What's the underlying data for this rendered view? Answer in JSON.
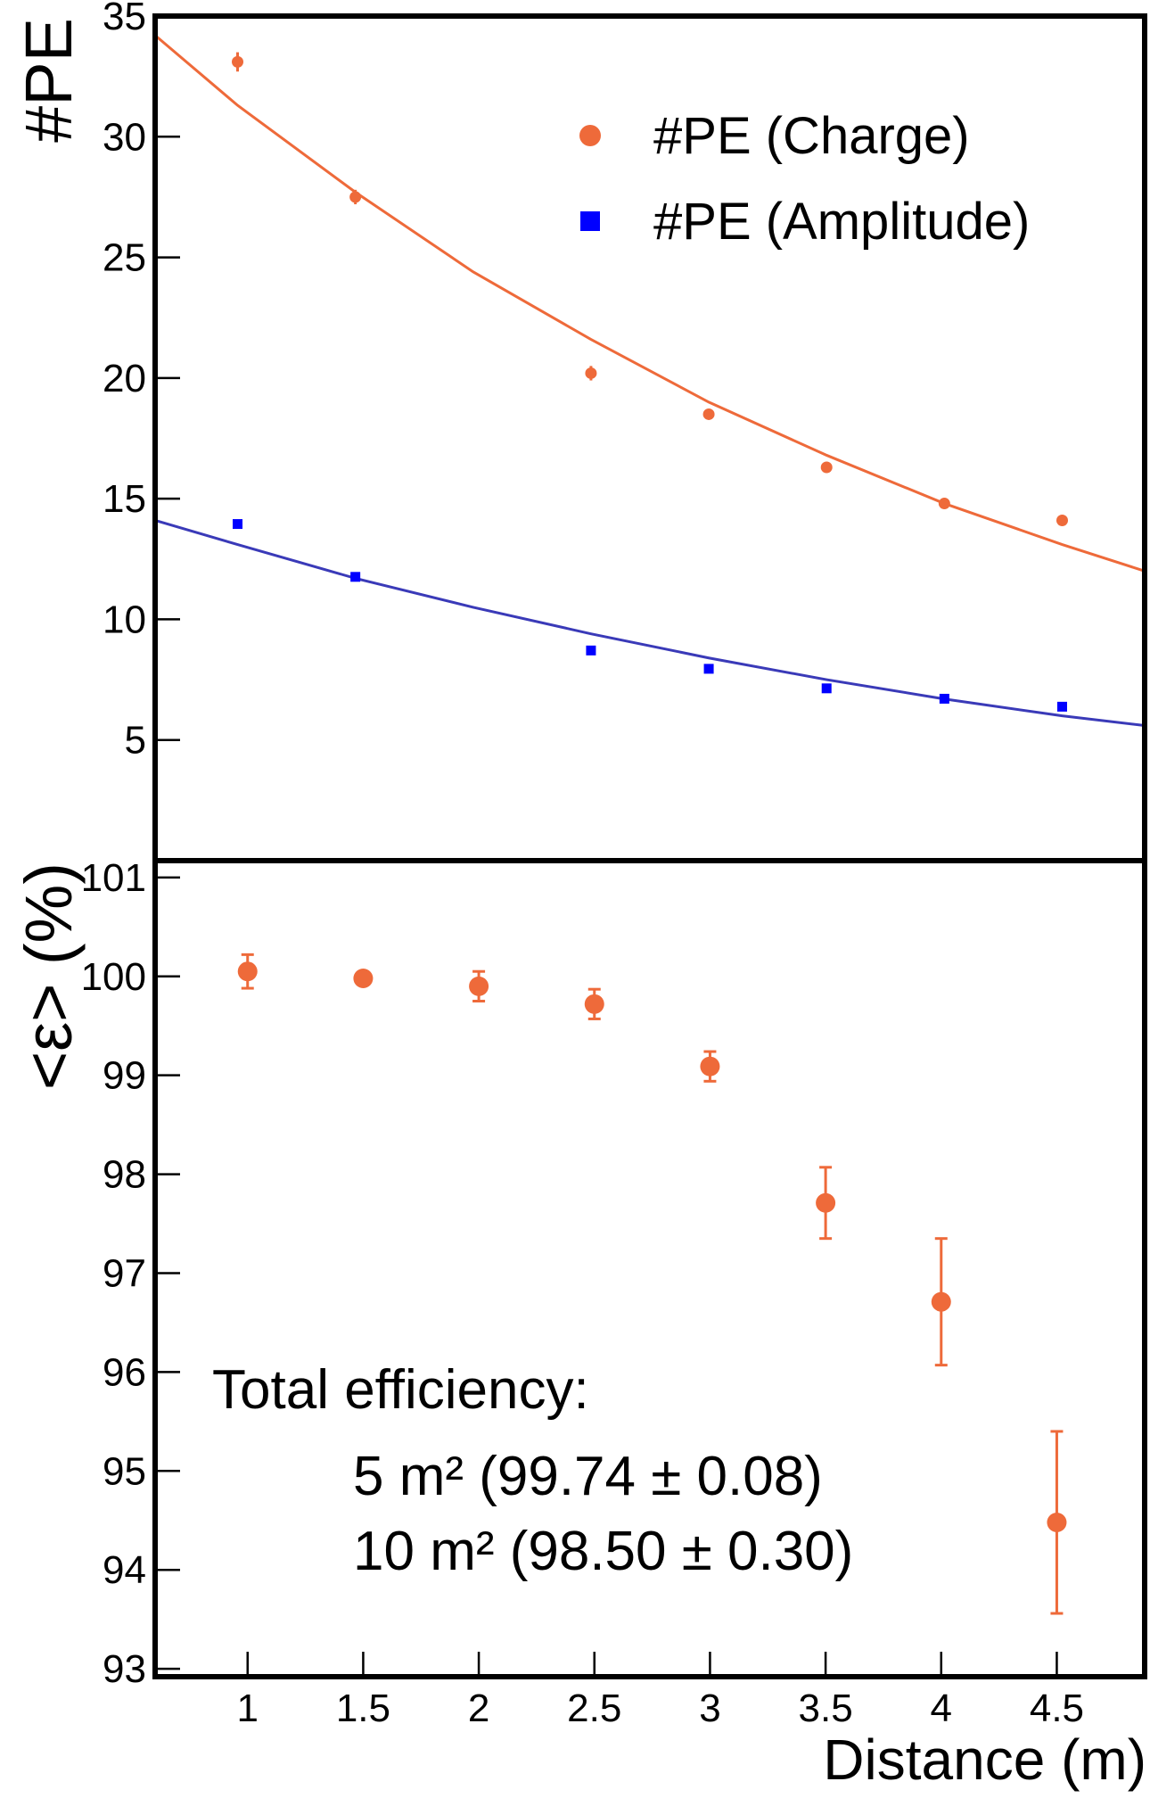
{
  "chart_data": [
    {
      "type": "scatter",
      "ylabel": "#PE",
      "xlim": [
        0.65,
        4.85
      ],
      "ylim": [
        0,
        35
      ],
      "yticks": [
        5,
        10,
        15,
        20,
        25,
        30,
        35
      ],
      "legend": "upper right",
      "series": [
        {
          "name": "#PE (Charge)",
          "color": "#ee6a3a",
          "marker": "circle",
          "x": [
            1,
            1.5,
            2.5,
            3,
            3.5,
            4,
            4.5
          ],
          "values": [
            33.1,
            27.5,
            20.2,
            18.5,
            16.3,
            14.8,
            14.1
          ],
          "errors": [
            0.4,
            0.3,
            0.3,
            0.1,
            0.1,
            0.1,
            0.1
          ]
        },
        {
          "name": "#PE (Amplitude)",
          "color": "#0000ff",
          "marker": "square",
          "x": [
            1,
            1.5,
            2.5,
            3,
            3.5,
            4,
            4.5
          ],
          "values": [
            13.95,
            11.76,
            8.71,
            7.95,
            7.14,
            6.71,
            6.38
          ]
        }
      ],
      "fits": [
        {
          "color": "#ee6a3a",
          "x": [
            0.65,
            1,
            1.5,
            2,
            2.5,
            3,
            3.5,
            4,
            4.5,
            4.85
          ],
          "values": [
            34.2,
            31.3,
            27.7,
            24.4,
            21.6,
            19.0,
            16.8,
            14.8,
            13.1,
            12.0
          ]
        },
        {
          "color": "#3a3ab8",
          "x": [
            0.65,
            1,
            1.5,
            2,
            2.5,
            3,
            3.5,
            4,
            4.5,
            4.85
          ],
          "values": [
            14.1,
            13.1,
            11.7,
            10.5,
            9.4,
            8.4,
            7.5,
            6.7,
            6.0,
            5.6
          ]
        }
      ]
    },
    {
      "type": "scatter",
      "ylabel": "<ε> (%)",
      "xlabel": "Distance (m)",
      "xlim": [
        0.6,
        4.88
      ],
      "ylim": [
        92.92,
        101.17
      ],
      "xticks": [
        1,
        1.5,
        2,
        2.5,
        3,
        3.5,
        4,
        4.5
      ],
      "yticks": [
        93,
        94,
        95,
        96,
        97,
        98,
        99,
        100,
        101
      ],
      "series": [
        {
          "color": "#ee6a3a",
          "marker": "circle",
          "x": [
            1,
            1.5,
            2,
            2.5,
            3,
            3.5,
            4,
            4.5
          ],
          "values": [
            100.05,
            99.98,
            99.9,
            99.72,
            99.09,
            97.71,
            96.71,
            94.48
          ],
          "errors": [
            0.17,
            0.05,
            0.15,
            0.15,
            0.15,
            0.36,
            0.64,
            0.92
          ]
        }
      ],
      "annotations": [
        "Total efficiency:",
        "5 m² (99.74 ± 0.08)",
        "10 m² (98.50 ± 0.30)"
      ]
    }
  ]
}
